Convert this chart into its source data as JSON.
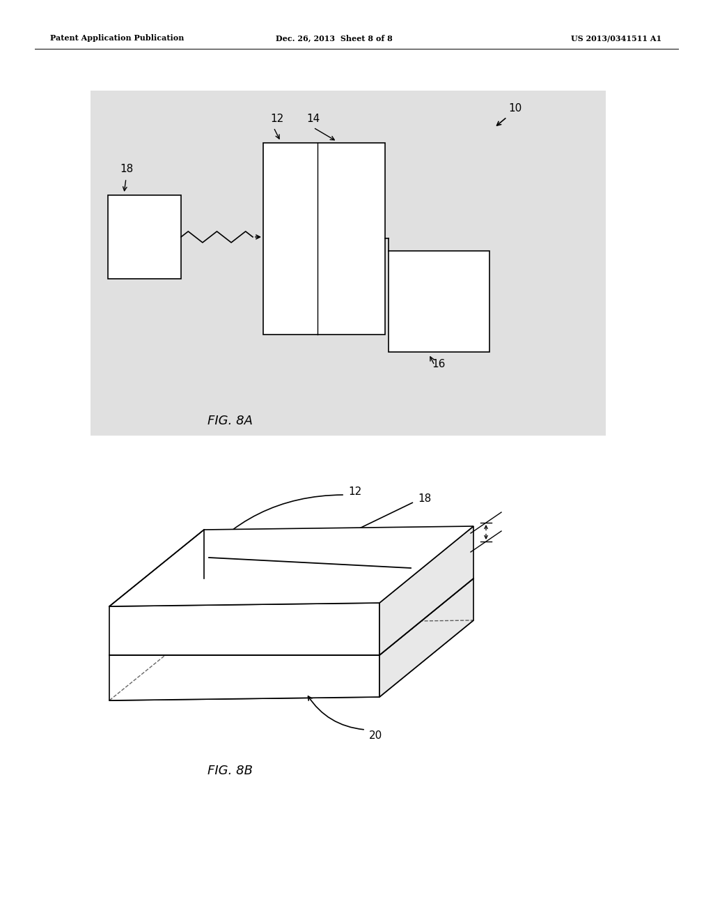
{
  "bg_color": "#ffffff",
  "header_left": "Patent Application Publication",
  "header_center": "Dec. 26, 2013  Sheet 8 of 8",
  "header_right": "US 2013/0341511 A1",
  "fig8a_label": "FIG. 8A",
  "fig8b_label": "FIG. 8B",
  "label_10": "10",
  "label_12": "12",
  "label_14": "14",
  "label_16": "16",
  "label_18": "18",
  "label_20": "20",
  "gray_bg": "#e0e0e0"
}
